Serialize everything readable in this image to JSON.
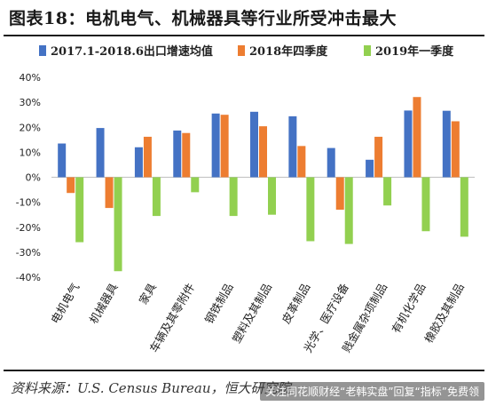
{
  "header": {
    "title": "图表18：电机电气、机械器具等行业所受冲击最大"
  },
  "footer": {
    "source_label": "资料来源：",
    "source_text": "U.S. Census Bureau，恒大研究院",
    "watermark": "关注同花顺财经“老韩实盘”回复“指标”免费领"
  },
  "colors": {
    "series": [
      "#4472c4",
      "#ed7d31",
      "#92d050"
    ]
  },
  "chart_data": {
    "type": "bar",
    "categories": [
      "电机电气",
      "机械器具",
      "家具",
      "车辆及其零附件",
      "钢铁制品",
      "塑料及其制品",
      "皮革制品",
      "光学、医疗设备",
      "贱金属杂项制品",
      "有机化学品",
      "橡胶及其制品"
    ],
    "series": [
      {
        "name": "2017.1-2018.6出口增速均值",
        "values": [
          13.5,
          19.7,
          12.0,
          18.7,
          25.5,
          26.2,
          24.4,
          11.7,
          7.0,
          26.7,
          26.6
        ]
      },
      {
        "name": "2018年四季度",
        "values": [
          -6.3,
          -12.3,
          16.2,
          17.7,
          25.0,
          20.4,
          12.5,
          -13.0,
          16.2,
          32.1,
          22.4
        ]
      },
      {
        "name": "2019年一季度",
        "values": [
          -26.0,
          -37.6,
          -15.5,
          -6.0,
          -15.5,
          -15.0,
          -25.6,
          -26.7,
          -11.3,
          -21.6,
          -23.8
        ]
      }
    ],
    "ylim": [
      -40,
      40
    ],
    "yticks": [
      -40,
      -30,
      -20,
      -10,
      0,
      10,
      20,
      30,
      40
    ],
    "ytick_labels": [
      "-40%",
      "-30%",
      "-20%",
      "-10%",
      "0%",
      "10%",
      "20%",
      "30%",
      "40%"
    ],
    "legend_position": "top",
    "grid": false
  }
}
